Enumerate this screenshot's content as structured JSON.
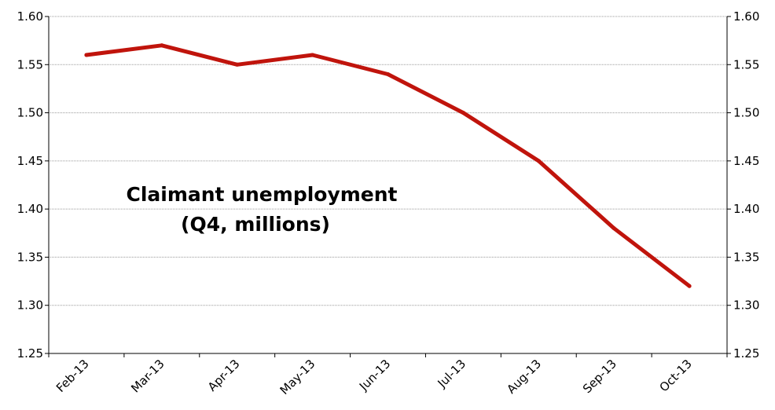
{
  "chart_data": {
    "type": "line",
    "title": [
      "Claimant unemployment",
      "(Q4, millions)"
    ],
    "categories": [
      "Feb-13",
      "Mar-13",
      "Apr-13",
      "May-13",
      "Jun-13",
      "Jul-13",
      "Aug-13",
      "Sep-13",
      "Oct-13"
    ],
    "series": [
      {
        "values": [
          1.56,
          1.57,
          1.55,
          1.56,
          1.54,
          1.5,
          1.45,
          1.38,
          1.32
        ],
        "color": "#c0140c"
      }
    ],
    "ylim": [
      1.25,
      1.6
    ],
    "yticks": [
      "1.25",
      "1.30",
      "1.35",
      "1.40",
      "1.45",
      "1.50",
      "1.55",
      "1.60"
    ],
    "secondary_y_axis": true,
    "grid": true,
    "legend": "none"
  }
}
